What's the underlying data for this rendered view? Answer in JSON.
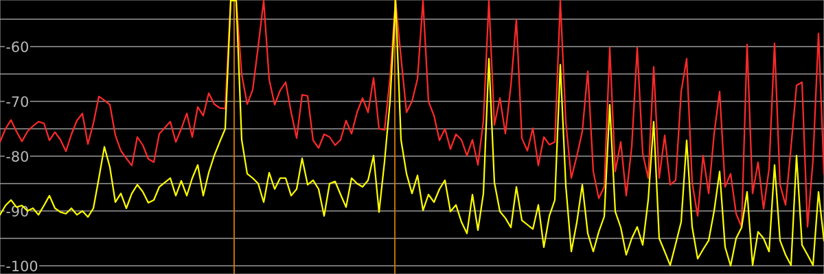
{
  "chart_data": {
    "type": "line",
    "categories": [
      null,
      null,
      null,
      null,
      null,
      null,
      null,
      null,
      null,
      null,
      null,
      null,
      null,
      null,
      null,
      null,
      null,
      null,
      null,
      null,
      null,
      null,
      null,
      null,
      null,
      null,
      null,
      null,
      null,
      null,
      null,
      null,
      null,
      null,
      null,
      null,
      null,
      null,
      null,
      null,
      null,
      null,
      null,
      null,
      null,
      null,
      null,
      null,
      null,
      null,
      null,
      null,
      null,
      null,
      null,
      null,
      null,
      null,
      null,
      null,
      null,
      null,
      null,
      null,
      null,
      null,
      null,
      null,
      null,
      null,
      null,
      null,
      null,
      null,
      null,
      null,
      null,
      null,
      null,
      null,
      null,
      null,
      null,
      null,
      null,
      null,
      null,
      null,
      null,
      null,
      null,
      null,
      null,
      null,
      null,
      null,
      null,
      null,
      null,
      null,
      null,
      null,
      null,
      null,
      null,
      null,
      null,
      null,
      null,
      null,
      null,
      null,
      null,
      null,
      null,
      null,
      null,
      null,
      null,
      null,
      null,
      null,
      null,
      null,
      null,
      null,
      null,
      null,
      null,
      null,
      null,
      null,
      null,
      null,
      null,
      null,
      null,
      null,
      null,
      null,
      null,
      null,
      null,
      null,
      null,
      null,
      null,
      null,
      null,
      null,
      null
    ],
    "ylim": [
      -101.5,
      -51.5
    ],
    "yticks": [
      -100,
      {
        "value": -95,
        "label": null
      },
      -90,
      {
        "value": -85,
        "label": null
      },
      -80,
      {
        "value": -75,
        "label": null
      },
      -70,
      {
        "value": -65,
        "label": null
      },
      -60,
      {
        "value": -55,
        "label": null
      }
    ],
    "grid": "y",
    "series": [
      {
        "color": "#ff2a2a",
        "values": [
          -77.4,
          -75,
          -73.4,
          -75.5,
          -77.3,
          -75.5,
          -74.5,
          -73.7,
          -74,
          -77.1,
          -75.6,
          -77,
          -79.1,
          -76,
          -73.5,
          -72.2,
          -77.8,
          -74,
          -69.1,
          -69.8,
          -70.6,
          -76.2,
          -79,
          -80.4,
          -81.7,
          -76.5,
          -78,
          -80.5,
          -81.1,
          -75.9,
          -74.8,
          -73.7,
          -77.4,
          -75,
          -72.2,
          -76.5,
          -71.0,
          -72.6,
          -68.5,
          -70.5,
          -71.2,
          -71.3,
          -51.6,
          -51.6,
          -65.1,
          -70.5,
          -67.9,
          -60,
          -51.6,
          -66,
          -70.6,
          -68,
          -66.5,
          -72,
          -76.7,
          -68.8,
          -69,
          -77.1,
          -78.5,
          -76,
          -76.5,
          -78,
          -77,
          -73.5,
          -75.9,
          -72,
          -69.4,
          -72,
          -65.7,
          -75,
          -75.2,
          -65.7,
          -51.6,
          -62,
          -72,
          -70,
          -65.9,
          -51.6,
          -70,
          -72.6,
          -77.1,
          -75,
          -78.7,
          -76,
          -77,
          -79.9,
          -77,
          -81.6,
          -73.5,
          -51.6,
          -74.3,
          -69.4,
          -75.9,
          -67.1,
          -55.1,
          -76.7,
          -79,
          -74.9,
          -81.7,
          -76.5,
          -77.9,
          -77.4,
          -51.6,
          -73.8,
          -84.0,
          -80,
          -75.5,
          -64.5,
          -82.8,
          -87.7,
          -85.6,
          -60.2,
          -82.8,
          -77.4,
          -87.2,
          -78.3,
          -60.2,
          -79.5,
          -84.0,
          -63.7,
          -84.0,
          -76.2,
          -85.2,
          -84.4,
          -68.2,
          -62.2,
          -84.8,
          -90.9,
          -79.9,
          -86.8,
          -75.9,
          -68.2,
          -85.6,
          -83.2,
          -90.5,
          -92.9,
          -59.6,
          -86.8,
          -81.1,
          -89.6,
          -82.3,
          -59.4,
          -85.2,
          -88.9,
          -78.3,
          -67.1,
          -66.5,
          -92.9,
          -80.7,
          -57.6,
          -83.2
        ]
      },
      {
        "color": "#ffff00",
        "values": [
          -90.7,
          -89,
          -88.0,
          -89.3,
          -89,
          -90,
          -89.5,
          -90.7,
          -89,
          -87.2,
          -89.5,
          -90.2,
          -90.5,
          -89.5,
          -90.7,
          -90,
          -91.1,
          -89.5,
          -84,
          -78.3,
          -82,
          -88.4,
          -86.8,
          -89.5,
          -86.8,
          -85.2,
          -86.5,
          -88.5,
          -88,
          -85.6,
          -84.8,
          -84.0,
          -87.2,
          -84.5,
          -87.2,
          -84,
          -81.6,
          -87.2,
          -83,
          -79.9,
          -77.4,
          -75,
          -51.6,
          -51.6,
          -77,
          -83.2,
          -84,
          -85,
          -88.4,
          -83,
          -86,
          -84,
          -84,
          -87.2,
          -86,
          -80.4,
          -85.2,
          -84.4,
          -86,
          -90.9,
          -85,
          -84.6,
          -87,
          -89.3,
          -84.0,
          -85,
          -85.6,
          -84.4,
          -79.9,
          -90.2,
          -81,
          -70,
          -51.6,
          -77,
          -83.2,
          -86.8,
          -83.5,
          -89.9,
          -87,
          -88.4,
          -86,
          -84.4,
          -90.1,
          -88.9,
          -92,
          -94.1,
          -87,
          -93.5,
          -86.8,
          -62.2,
          -84.8,
          -90.1,
          -91.3,
          -93,
          -85.6,
          -91.7,
          -92.5,
          -93.3,
          -88.9,
          -96.6,
          -90.9,
          -88.0,
          -63.3,
          -85.4,
          -97.4,
          -92.1,
          -85.2,
          -94.1,
          -97.4,
          -93.8,
          -91,
          -70.6,
          -90.1,
          -93,
          -98.0,
          -95,
          -92.9,
          -96.2,
          -88.0,
          -73.7,
          -95,
          -97.4,
          -99.9,
          -96,
          -92,
          -77.1,
          -92.9,
          -98.7,
          -97,
          -95.4,
          -90,
          -82.8,
          -96.6,
          -100.0,
          -95.0,
          -93,
          -86.5,
          -99.9,
          -93.8,
          -95,
          -97.4,
          -81.6,
          -95.4,
          -98,
          -99.9,
          -79.9,
          -96.2,
          -98,
          -99.9,
          -86.5,
          -95.4
        ]
      }
    ]
  }
}
